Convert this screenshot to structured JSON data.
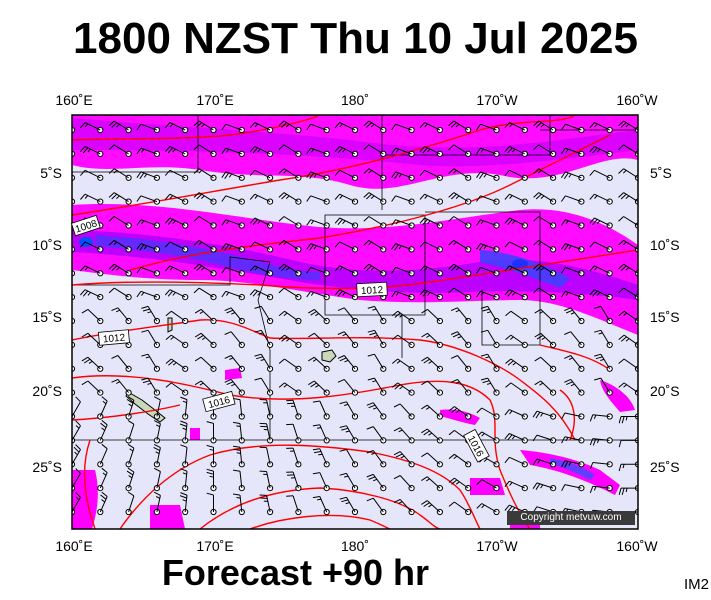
{
  "title": "1800 NZST Thu 10 Jul 2025",
  "subtitle": "Forecast +90 hr",
  "corner_id": "IM2",
  "copyright": "Copyright metvuw.com",
  "axes": {
    "top_lon_labels": [
      "160˚E",
      "170˚E",
      "180˚",
      "170˚W",
      "160˚W"
    ],
    "bottom_lon_labels": [
      "160˚E",
      "170˚E",
      "180˚",
      "170˚W",
      "160˚W"
    ],
    "left_lat_labels": [
      "5˚S",
      "10˚S",
      "15˚S",
      "20˚S",
      "25˚S"
    ],
    "right_lat_labels": [
      "5˚S",
      "10˚S",
      "15˚S",
      "20˚S",
      "25˚S"
    ]
  },
  "isobar_labels": [
    "1008",
    "1012",
    "1012",
    "1016",
    "1016"
  ],
  "colors": {
    "ocean": "#e6e6fa",
    "precip_light": "#ff00ff",
    "precip_medium": "#cc00ff",
    "precip_heavy": "#6a3dff",
    "precip_extreme": "#0055ff",
    "isobar": "#ff0000",
    "land": "#c8d8b8"
  },
  "grid": {
    "lon_range": [
      160,
      200
    ],
    "lat_range": [
      -2,
      -29
    ],
    "wind_barbs": "on"
  }
}
